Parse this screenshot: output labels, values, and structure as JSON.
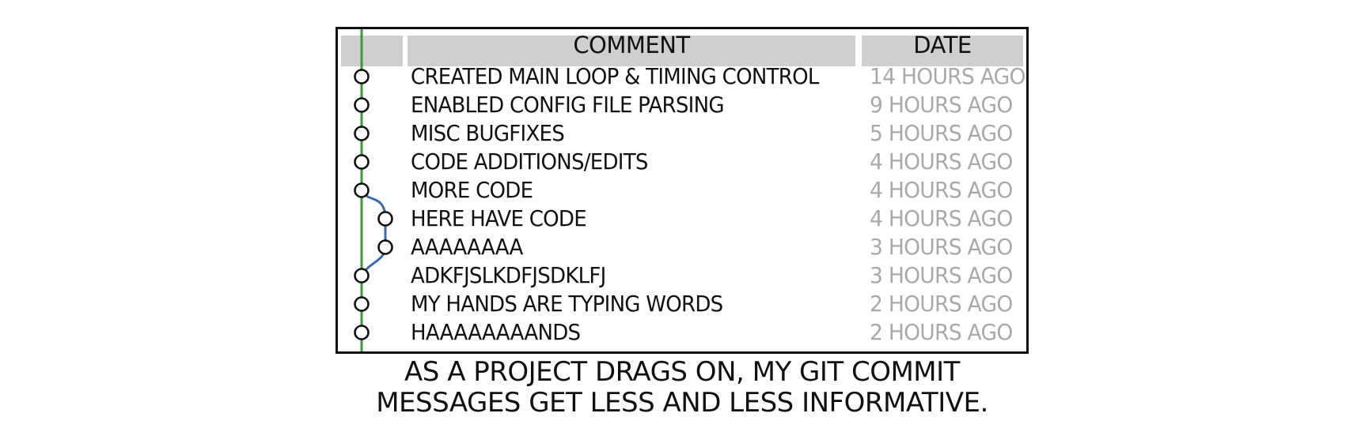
{
  "table": {
    "headers": {
      "comment": "COMMENT",
      "date": "DATE"
    },
    "commits": [
      {
        "message": "CREATED MAIN LOOP & TIMING CONTROL",
        "date": "14 HOURS AGO",
        "branch": "main"
      },
      {
        "message": "ENABLED CONFIG FILE PARSING",
        "date": "9 HOURS AGO",
        "branch": "main"
      },
      {
        "message": "MISC BUGFIXES",
        "date": "5 HOURS AGO",
        "branch": "main"
      },
      {
        "message": "CODE ADDITIONS/EDITS",
        "date": "4 HOURS AGO",
        "branch": "main"
      },
      {
        "message": "MORE CODE",
        "date": "4 HOURS AGO",
        "branch": "main"
      },
      {
        "message": "HERE HAVE CODE",
        "date": "4 HOURS AGO",
        "branch": "side"
      },
      {
        "message": "AAAAAAAA",
        "date": "3 HOURS AGO",
        "branch": "side"
      },
      {
        "message": "ADKFJSLKDFJSDKLFJ",
        "date": "3 HOURS AGO",
        "branch": "main"
      },
      {
        "message": "MY HANDS ARE TYPING WORDS",
        "date": "2 HOURS AGO",
        "branch": "main"
      },
      {
        "message": "HAAAAAAAANDS",
        "date": "2 HOURS AGO",
        "branch": "main"
      }
    ]
  },
  "caption": {
    "line1": "AS A PROJECT DRAGS ON, MY GIT COMMIT",
    "line2": "MESSAGES GET LESS AND LESS INFORMATIVE."
  },
  "colors": {
    "main_branch": "#3a9a3a",
    "side_branch": "#3f6aa8",
    "date_text": "#a9a9a9",
    "header_bg": "#cfcfcf"
  }
}
